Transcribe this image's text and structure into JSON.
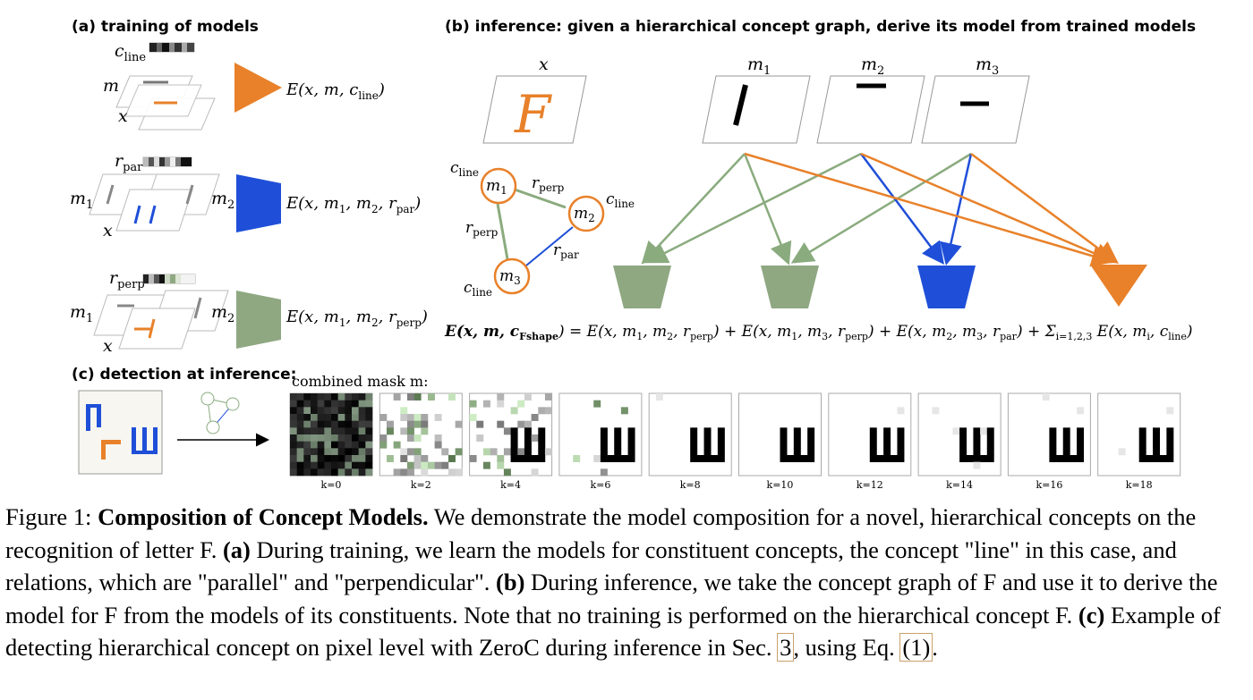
{
  "panels": {
    "a_title": "(a) training of models",
    "b_title": "(b) inference: given a hierarchical concept graph, derive its model from trained models",
    "c_title": "(c) detection at inference:"
  },
  "panel_a": {
    "rows": [
      {
        "emb_label": "c",
        "emb_sub": "line",
        "left_label": "m",
        "left_sub": "",
        "right_label": "",
        "right_sub": "",
        "x_label": "x",
        "energy": "E(x, m, c",
        "energy_sub": "line",
        "energy_tail": ")"
      },
      {
        "emb_label": "r",
        "emb_sub": "par",
        "left_label": "m",
        "left_sub": "1",
        "right_label": "m",
        "right_sub": "2",
        "x_label": "x",
        "energy": "E(x, m",
        "energy_sub": "1",
        "energy_tail": ", m₂, r_par)"
      },
      {
        "emb_label": "r",
        "emb_sub": "perp",
        "left_label": "m",
        "left_sub": "1",
        "right_label": "m",
        "right_sub": "2",
        "x_label": "x",
        "energy": "E(x, m",
        "energy_sub": "1",
        "energy_tail": ", m₂, r_perp)"
      }
    ]
  },
  "panel_b": {
    "x_label": "x",
    "input_letter": "F",
    "m_labels": [
      "m",
      "m",
      "m"
    ],
    "m_subs": [
      "1",
      "2",
      "3"
    ],
    "graph": {
      "nodes": [
        {
          "label": "m",
          "sub": "1"
        },
        {
          "label": "m",
          "sub": "2"
        },
        {
          "label": "m",
          "sub": "3"
        }
      ],
      "node_labels": [
        {
          "label": "c",
          "sub": "line"
        },
        {
          "label": "c",
          "sub": "line"
        },
        {
          "label": "c",
          "sub": "line"
        }
      ],
      "edge_labels": [
        {
          "label": "r",
          "sub": "perp"
        },
        {
          "label": "r",
          "sub": "perp"
        },
        {
          "label": "r",
          "sub": "par"
        }
      ]
    },
    "equation": "E(x, m, c_Fshape) = E(x, m₁, m₂, r_perp) + E(x, m₁, m₃, r_perp) + E(x, m₂, m₃, r_par) + Σ_{i=1,2,3} E(x, mᵢ, c_line)"
  },
  "panel_c": {
    "mask_title": "combined mask m:",
    "steps": [
      "k=0",
      "k=2",
      "k=4",
      "k=6",
      "k=8",
      "k=10",
      "k=12",
      "k=14",
      "k=16",
      "k=18"
    ]
  },
  "colors": {
    "orange": "#e8812a",
    "blue": "#1f4fd8",
    "green": "#8fa882",
    "green_line": "#8aab7e"
  },
  "caption": {
    "fig": "Figure 1:",
    "title": "Composition of Concept Models.",
    "s1": "We demonstrate the model composition for a novel, hierarchical concepts on the recognition of letter F.",
    "a": "(a)",
    "s2": "During training, we learn the models for constituent concepts, the concept \"line\" in this case, and relations, which are \"parallel\" and \"perpendicular\".",
    "b": "(b)",
    "s3": "During inference, we take the concept graph of F and use it to derive the model for F from the models of its constituents. Note that no training is performed on the hierarchical concept F.",
    "c": "(c)",
    "s4": "Example of detecting hierarchical concept on pixel level with ZeroC during inference in Sec.",
    "ref1": "3",
    "s5": ", using Eq.",
    "ref2": "(1)",
    "s6": "."
  }
}
